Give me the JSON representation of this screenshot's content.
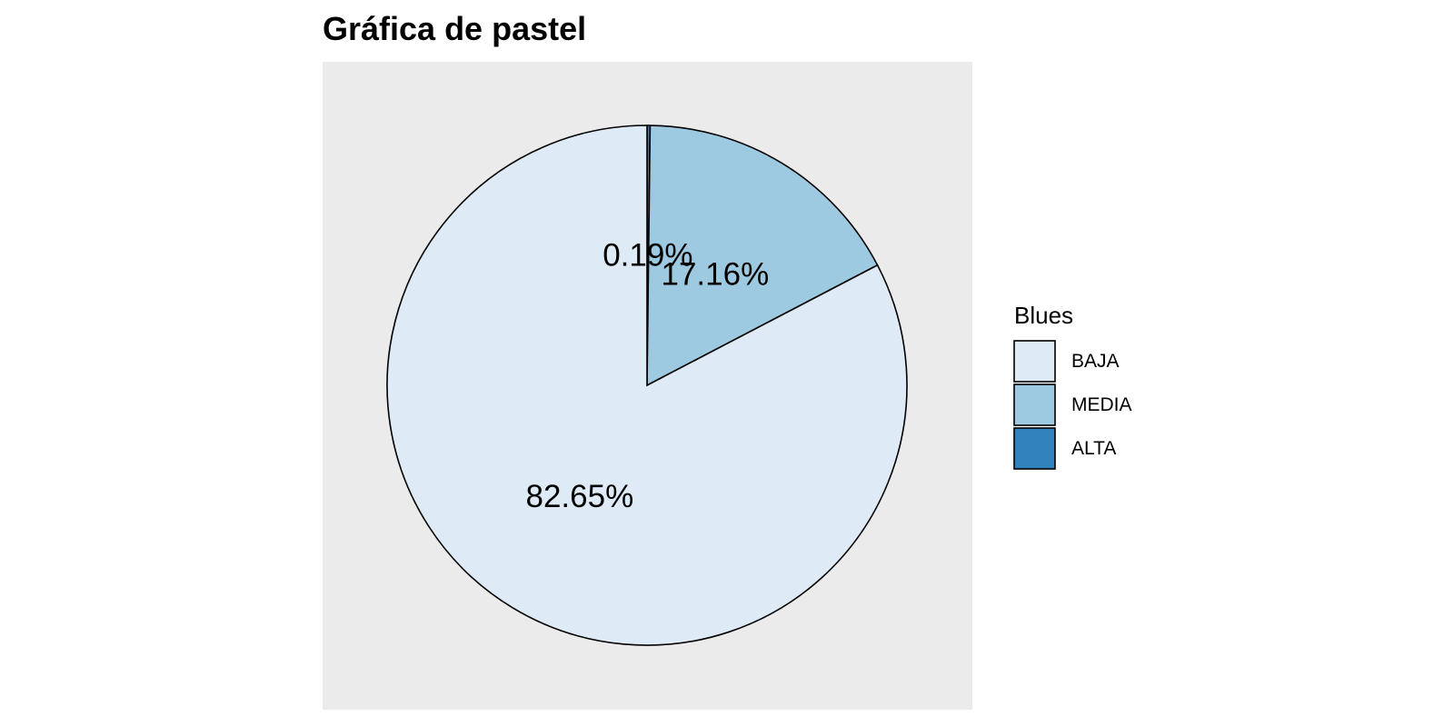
{
  "chart_data": {
    "type": "pie",
    "title": "Gráfica de pastel",
    "legend_title": "Blues",
    "legend_position": "right",
    "start_angle_deg": 0,
    "direction": "clockwise",
    "panel_background": "#EBEBEB",
    "slice_outline": "#000000",
    "slices": [
      {
        "category": "ALTA",
        "value": 0.19,
        "label": "0.19%",
        "color": "#3182BD"
      },
      {
        "category": "MEDIA",
        "value": 17.16,
        "label": "17.16%",
        "color": "#9ECAE1"
      },
      {
        "category": "BAJA",
        "value": 82.65,
        "label": "82.65%",
        "color": "#DEEBF7"
      }
    ],
    "legend_entries": [
      {
        "label": "BAJA",
        "color": "#DEEBF7"
      },
      {
        "label": "MEDIA",
        "color": "#9ECAE1"
      },
      {
        "label": "ALTA",
        "color": "#3182BD"
      }
    ]
  }
}
